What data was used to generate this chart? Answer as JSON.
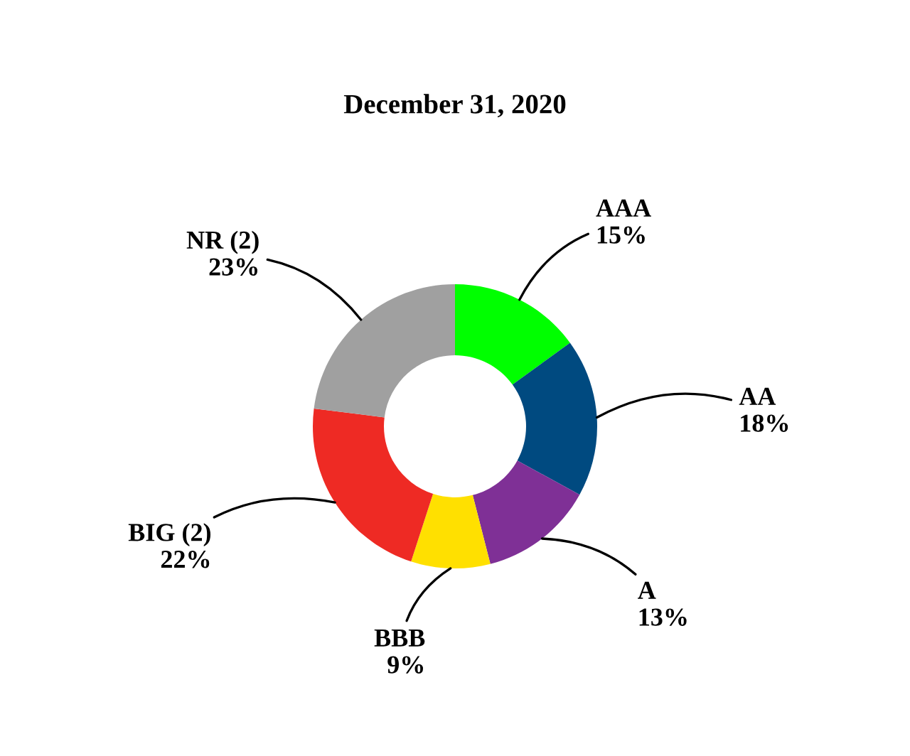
{
  "chart_data": {
    "type": "donut",
    "title": "December 31, 2020",
    "categories": [
      "AAA",
      "AA",
      "A",
      "BBB",
      "BIG (2)",
      "NR (2)"
    ],
    "values": [
      15,
      18,
      13,
      9,
      22,
      23
    ],
    "value_labels": [
      "15%",
      "18%",
      "13%",
      "9%",
      "22%",
      "23%"
    ],
    "colors": [
      "#00ff00",
      "#004a80",
      "#7f3096",
      "#ffe000",
      "#ee2a24",
      "#a0a0a0"
    ],
    "legend": false
  }
}
